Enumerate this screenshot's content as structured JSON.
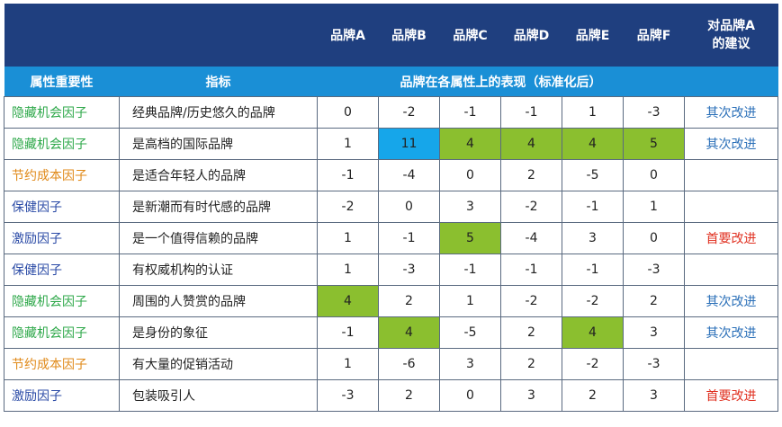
{
  "header": {
    "brands": [
      "品牌A",
      "品牌B",
      "品牌C",
      "品牌D",
      "品牌E",
      "品牌F"
    ],
    "advice_line1": "对品牌A",
    "advice_line2": "的建议",
    "factor_col": "属性重要性",
    "indicator_col": "指标",
    "perf_col": "品牌在各属性上的表现（标准化后）"
  },
  "colors": {
    "header_dark": "#1f3f7f",
    "header_light": "#1a8fd6",
    "highlight_green": "#8bbf2f",
    "highlight_blue": "#16a6ea"
  },
  "rows": [
    {
      "factor": "隐藏机会因子",
      "factor_color": "green",
      "indicator": "经典品牌/历史悠久的品牌",
      "values": [
        "0",
        "-2",
        "-1",
        "-1",
        "1",
        "-3"
      ],
      "highlight": [
        "",
        "",
        "",
        "",
        "",
        ""
      ],
      "advice": "其次改进",
      "advice_type": "second"
    },
    {
      "factor": "隐藏机会因子",
      "factor_color": "green",
      "indicator": "是高档的国际品牌",
      "values": [
        "1",
        "11",
        "4",
        "4",
        "4",
        "5"
      ],
      "highlight": [
        "",
        "blue",
        "green",
        "green",
        "green",
        "green"
      ],
      "advice": "其次改进",
      "advice_type": "second"
    },
    {
      "factor": "节约成本因子",
      "factor_color": "orange",
      "indicator": "是适合年轻人的品牌",
      "values": [
        "-1",
        "-4",
        "0",
        "2",
        "-5",
        "0"
      ],
      "highlight": [
        "",
        "",
        "",
        "",
        "",
        ""
      ],
      "advice": "",
      "advice_type": ""
    },
    {
      "factor": "保健因子",
      "factor_color": "blue",
      "indicator": "是新潮而有时代感的品牌",
      "values": [
        "-2",
        "0",
        "3",
        "-2",
        "-1",
        "1"
      ],
      "highlight": [
        "",
        "",
        "",
        "",
        "",
        ""
      ],
      "advice": "",
      "advice_type": ""
    },
    {
      "factor": "激励因子",
      "factor_color": "blue",
      "indicator": "是一个值得信赖的品牌",
      "values": [
        "1",
        "-1",
        "5",
        "-4",
        "3",
        "0"
      ],
      "highlight": [
        "",
        "",
        "green",
        "",
        "",
        ""
      ],
      "advice": "首要改进",
      "advice_type": "first"
    },
    {
      "factor": "保健因子",
      "factor_color": "blue",
      "indicator": "有权威机构的认证",
      "values": [
        "1",
        "-3",
        "-1",
        "-1",
        "-1",
        "-3"
      ],
      "highlight": [
        "",
        "",
        "",
        "",
        "",
        ""
      ],
      "advice": "",
      "advice_type": ""
    },
    {
      "factor": "隐藏机会因子",
      "factor_color": "green",
      "indicator": "周围的人赞赏的品牌",
      "values": [
        "4",
        "2",
        "1",
        "-2",
        "-2",
        "2"
      ],
      "highlight": [
        "green",
        "",
        "",
        "",
        "",
        ""
      ],
      "advice": "其次改进",
      "advice_type": "second"
    },
    {
      "factor": "隐藏机会因子",
      "factor_color": "green",
      "indicator": "是身份的象征",
      "values": [
        "-1",
        "4",
        "-5",
        "2",
        "4",
        "3"
      ],
      "highlight": [
        "",
        "green",
        "",
        "",
        "green",
        ""
      ],
      "advice": "其次改进",
      "advice_type": "second"
    },
    {
      "factor": "节约成本因子",
      "factor_color": "orange",
      "indicator": "有大量的促销活动",
      "values": [
        "1",
        "-6",
        "3",
        "2",
        "-2",
        "-3"
      ],
      "highlight": [
        "",
        "",
        "",
        "",
        "",
        ""
      ],
      "advice": "",
      "advice_type": ""
    },
    {
      "factor": "激励因子",
      "factor_color": "blue",
      "indicator": "包装吸引人",
      "values": [
        "-3",
        "2",
        "0",
        "3",
        "2",
        "3"
      ],
      "highlight": [
        "",
        "",
        "",
        "",
        "",
        ""
      ],
      "advice": "首要改进",
      "advice_type": "first"
    }
  ]
}
